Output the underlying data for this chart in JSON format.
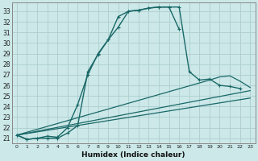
{
  "xlabel": "Humidex (Indice chaleur)",
  "background_color": "#cce8e8",
  "grid_color": "#b0d0d0",
  "line_color": "#1a6868",
  "ylim": [
    20.5,
    33.8
  ],
  "xlim": [
    -0.5,
    23.5
  ],
  "yticks": [
    21,
    22,
    23,
    24,
    25,
    26,
    27,
    28,
    29,
    30,
    31,
    32,
    33
  ],
  "xticks": [
    0,
    1,
    2,
    3,
    4,
    5,
    6,
    7,
    8,
    9,
    10,
    11,
    12,
    13,
    14,
    15,
    16,
    17,
    18,
    19,
    20,
    21,
    22,
    23
  ],
  "series": [
    {
      "x": [
        0,
        1,
        2,
        3,
        4,
        5,
        6,
        7,
        8,
        9,
        10,
        11,
        12,
        13,
        14,
        15,
        16,
        17,
        18,
        19,
        20,
        21,
        22,
        23
      ],
      "y": [
        21.3,
        20.9,
        21.0,
        21.0,
        21.0,
        21.5,
        22.2,
        27.3,
        28.9,
        30.3,
        31.5,
        33.0,
        33.1,
        33.3,
        33.4,
        33.4,
        31.3,
        null,
        null,
        null,
        null,
        null,
        null,
        null
      ],
      "marker": true,
      "markersize": 2.5,
      "linewidth": 1.0
    },
    {
      "x": [
        0,
        1,
        2,
        3,
        4,
        5,
        6,
        7,
        8,
        9,
        10,
        11,
        12,
        13,
        14,
        15,
        16,
        17,
        18,
        19,
        20,
        21,
        22,
        23
      ],
      "y": [
        21.3,
        20.9,
        21.0,
        21.2,
        21.1,
        22.0,
        24.2,
        27.0,
        29.0,
        30.3,
        32.5,
        33.0,
        33.1,
        33.3,
        33.4,
        33.4,
        33.4,
        27.3,
        26.5,
        26.6,
        26.0,
        25.9,
        25.7,
        null
      ],
      "marker": true,
      "markersize": 2.5,
      "linewidth": 1.0
    },
    {
      "x": [
        0,
        19,
        20,
        21,
        22,
        23
      ],
      "y": [
        21.3,
        26.5,
        26.8,
        26.9,
        26.4,
        25.8
      ],
      "marker": false,
      "markersize": 0,
      "linewidth": 0.9
    },
    {
      "x": [
        0,
        23
      ],
      "y": [
        21.3,
        25.5
      ],
      "marker": false,
      "markersize": 0,
      "linewidth": 0.9
    },
    {
      "x": [
        0,
        23
      ],
      "y": [
        21.3,
        24.8
      ],
      "marker": false,
      "markersize": 0,
      "linewidth": 0.9
    }
  ]
}
